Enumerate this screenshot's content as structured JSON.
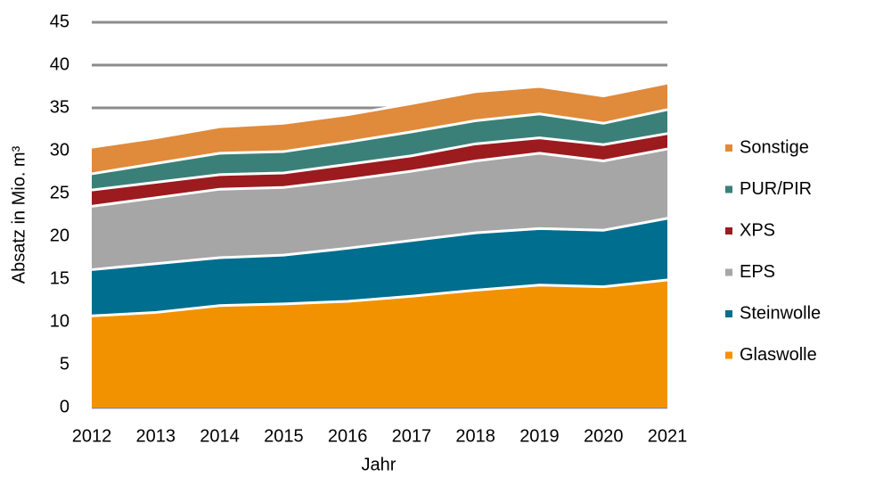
{
  "chart_data": {
    "type": "stacked_area",
    "xlabel": "Jahr",
    "ylabel": "Absatz in Mio. m³",
    "categories": [
      "2012",
      "2013",
      "2014",
      "2015",
      "2016",
      "2017",
      "2018",
      "2019",
      "2020",
      "2021"
    ],
    "series": [
      {
        "name": "Glaswolle",
        "color": "#f39200",
        "values": [
          10.7,
          11.1,
          11.9,
          12.1,
          12.4,
          13.0,
          13.7,
          14.3,
          14.1,
          14.9
        ]
      },
      {
        "name": "Steinwolle",
        "color": "#006e8f",
        "values": [
          5.4,
          5.7,
          5.6,
          5.7,
          6.2,
          6.5,
          6.7,
          6.6,
          6.6,
          7.2
        ]
      },
      {
        "name": "EPS",
        "color": "#a6a6a6",
        "values": [
          7.4,
          7.7,
          8.0,
          7.9,
          8.0,
          8.1,
          8.4,
          8.8,
          8.1,
          8.1
        ]
      },
      {
        "name": "XPS",
        "color": "#9b1b1e",
        "values": [
          1.9,
          1.8,
          1.7,
          1.7,
          1.8,
          1.8,
          2.0,
          1.8,
          1.9,
          1.8
        ]
      },
      {
        "name": "PUR/PIR",
        "color": "#3a8079",
        "values": [
          1.9,
          2.2,
          2.5,
          2.5,
          2.6,
          2.8,
          2.7,
          2.8,
          2.5,
          2.8
        ]
      },
      {
        "name": "Sonstige",
        "color": "#e08a3c",
        "values": [
          3.1,
          3.0,
          3.1,
          3.3,
          3.2,
          3.3,
          3.4,
          3.2,
          3.2,
          3.1
        ]
      }
    ],
    "ylim": [
      0,
      45
    ],
    "yticks": [
      0,
      5,
      10,
      15,
      20,
      25,
      30,
      35,
      40,
      45
    ],
    "grid": true,
    "legend": "right"
  }
}
